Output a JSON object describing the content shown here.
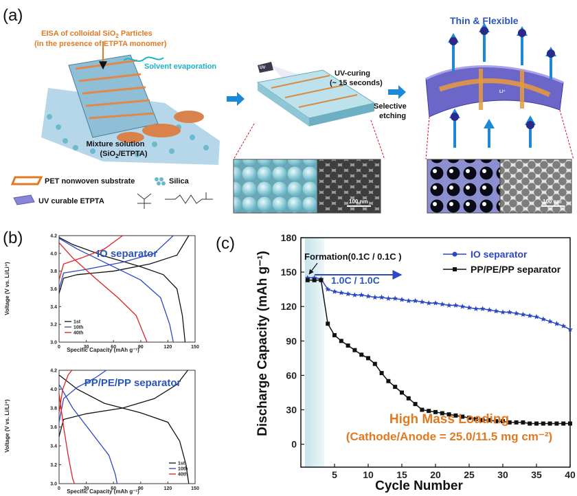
{
  "figure": {
    "panel_labels": [
      "(a)",
      "(b)",
      "(c)"
    ],
    "colors": {
      "blue_text": "#2a55b8",
      "orange_text": "#e07a22",
      "arrow_blue": "#1e88d8",
      "cyan_text": "#18b2c8"
    }
  },
  "panel_a": {
    "title": "Thin & Flexible",
    "eisa_line1": "EISA of colloidal SiO",
    "eisa_sub": "2",
    "eisa_line1b": " Particles",
    "eisa_line2": "(in the presence of ETPTA monomer)",
    "solvent": "Solvent evaporation",
    "uv_curing": "UV-curing",
    "uv_time": "(~ 15 seconds)",
    "uv_lamp": "UV",
    "etch1": "Selective",
    "etch2": "etching",
    "mixture1": "Mixture solution",
    "mixture2": "(SiO",
    "mixture2_sub": "2",
    "mixture2b": "/ETPTA)",
    "legend_pet": "PET nonwoven substrate",
    "legend_silica": "Silica",
    "legend_etpta": "UV curable ETPTA",
    "scale1": "100 nm",
    "scale2": "100 nm",
    "ion_label": "Li⁺"
  },
  "panel_b_top": {
    "title": "IO separator",
    "xlabel": "Specific Capacity (mAh g⁻¹)",
    "ylabel": "Voltage (V vs. Li/Li⁺)",
    "legend": [
      "1st",
      "10th",
      "40th"
    ]
  },
  "panel_b_bottom": {
    "title": "PP/PE/PP separator",
    "xlabel": "Specific Capacity (mAh g⁻¹)",
    "ylabel": "Voltage (V vs. Li/Li⁺)",
    "legend": [
      "1st",
      "10th",
      "40th"
    ]
  },
  "panel_c": {
    "formation": "Formation(0.1C / 0.1C )",
    "rate": "1.0C / 1.0C",
    "hml1": "High Mass Loading",
    "hml2": "(Cathode/Anode = 25.0/11.5 mg cm⁻²)"
  },
  "chart_data": [
    {
      "type": "line",
      "title": "IO separator",
      "xlabel": "Specific Capacity (mAh g⁻¹)",
      "ylabel": "Voltage (V vs. Li/Li⁺)",
      "xlim": [
        0,
        150
      ],
      "ylim": [
        3.0,
        4.2
      ],
      "xticks": [
        0,
        30,
        60,
        90,
        120,
        150
      ],
      "yticks": [
        3.0,
        3.2,
        3.4,
        3.6,
        3.8,
        4.0,
        4.2
      ],
      "legend_position": "bottom-left",
      "series": [
        {
          "name": "1st",
          "color": "#111111",
          "charge": [
            [
              0,
              3.55
            ],
            [
              5,
              3.72
            ],
            [
              20,
              3.76
            ],
            [
              60,
              3.8
            ],
            [
              100,
              3.88
            ],
            [
              130,
              3.98
            ],
            [
              143,
              4.2
            ]
          ],
          "discharge": [
            [
              0,
              4.18
            ],
            [
              15,
              4.1
            ],
            [
              50,
              3.97
            ],
            [
              90,
              3.85
            ],
            [
              115,
              3.76
            ],
            [
              130,
              3.6
            ],
            [
              136,
              3.3
            ],
            [
              139,
              3.0
            ]
          ]
        },
        {
          "name": "10th",
          "color": "#2b47c4",
          "charge": [
            [
              0,
              3.6
            ],
            [
              5,
              3.78
            ],
            [
              30,
              3.82
            ],
            [
              70,
              3.9
            ],
            [
              105,
              4.0
            ],
            [
              126,
              4.2
            ]
          ],
          "discharge": [
            [
              0,
              4.17
            ],
            [
              20,
              4.05
            ],
            [
              50,
              3.9
            ],
            [
              90,
              3.7
            ],
            [
              112,
              3.5
            ],
            [
              122,
              3.2
            ],
            [
              126,
              3.0
            ]
          ]
        },
        {
          "name": "40th",
          "color": "#e02020",
          "charge": [
            [
              0,
              3.7
            ],
            [
              5,
              3.88
            ],
            [
              25,
              3.95
            ],
            [
              50,
              4.05
            ],
            [
              70,
              4.2
            ]
          ],
          "discharge": [
            [
              0,
              4.12
            ],
            [
              15,
              3.95
            ],
            [
              40,
              3.72
            ],
            [
              65,
              3.5
            ],
            [
              85,
              3.3
            ],
            [
              97,
              3.0
            ]
          ]
        }
      ]
    },
    {
      "type": "line",
      "title": "PP/PE/PP separator",
      "xlabel": "Specific Capacity (mAh g⁻¹)",
      "ylabel": "Voltage (V vs. Li/Li⁺)",
      "xlim": [
        0,
        150
      ],
      "ylim": [
        3.0,
        4.2
      ],
      "xticks": [
        0,
        30,
        60,
        90,
        120,
        150
      ],
      "yticks": [
        3.0,
        3.2,
        3.4,
        3.6,
        3.8,
        4.0,
        4.2
      ],
      "legend_position": "bottom-right",
      "series": [
        {
          "name": "1st",
          "color": "#111111",
          "charge": [
            [
              0,
              3.5
            ],
            [
              5,
              3.68
            ],
            [
              30,
              3.74
            ],
            [
              70,
              3.8
            ],
            [
              105,
              3.9
            ],
            [
              130,
              4.05
            ],
            [
              142,
              4.2
            ]
          ],
          "discharge": [
            [
              0,
              4.15
            ],
            [
              20,
              4.0
            ],
            [
              50,
              3.85
            ],
            [
              90,
              3.75
            ],
            [
              120,
              3.65
            ],
            [
              133,
              3.45
            ],
            [
              140,
              3.2
            ],
            [
              143,
              3.0
            ]
          ]
        },
        {
          "name": "10th",
          "color": "#2b47c4",
          "charge": [
            [
              0,
              3.65
            ],
            [
              5,
              3.9
            ],
            [
              20,
              4.02
            ],
            [
              40,
              4.12
            ],
            [
              52,
              4.2
            ]
          ],
          "discharge": [
            [
              0,
              4.05
            ],
            [
              15,
              3.8
            ],
            [
              35,
              3.55
            ],
            [
              55,
              3.3
            ],
            [
              62,
              3.1
            ],
            [
              64,
              3.0
            ]
          ]
        },
        {
          "name": "40th",
          "color": "#e02020",
          "charge": [
            [
              0,
              3.75
            ],
            [
              4,
              4.0
            ],
            [
              10,
              4.15
            ],
            [
              14,
              4.2
            ]
          ],
          "discharge": [
            [
              0,
              3.95
            ],
            [
              5,
              3.6
            ],
            [
              10,
              3.3
            ],
            [
              15,
              3.05
            ],
            [
              17,
              3.0
            ]
          ]
        }
      ]
    },
    {
      "type": "line",
      "xlabel": "Cycle Number",
      "ylabel": "Discharge Capacity (mAh g⁻¹)",
      "xlim": [
        0,
        40
      ],
      "ylim": [
        -20,
        180
      ],
      "xticks": [
        5,
        10,
        15,
        20,
        25,
        30,
        35,
        40
      ],
      "yticks": [
        0,
        30,
        60,
        90,
        120,
        150,
        180
      ],
      "legend_position": "top-right",
      "series": [
        {
          "name": "IO separator",
          "color": "#2b47c4",
          "marker": "star",
          "x": [
            1,
            2,
            3,
            4,
            5,
            6,
            7,
            8,
            9,
            10,
            11,
            12,
            13,
            14,
            15,
            16,
            17,
            18,
            19,
            20,
            21,
            22,
            23,
            24,
            25,
            26,
            27,
            28,
            29,
            30,
            31,
            32,
            33,
            34,
            35,
            36,
            37,
            38,
            39,
            40
          ],
          "y": [
            145,
            145,
            144,
            135,
            133,
            132,
            131,
            130,
            130,
            129,
            128,
            128,
            127,
            127,
            126,
            125,
            125,
            124,
            123,
            123,
            122,
            121,
            121,
            120,
            119,
            118,
            118,
            117,
            116,
            115,
            115,
            114,
            113,
            112,
            111,
            109,
            107,
            105,
            103,
            100
          ]
        },
        {
          "name": "PP/PE/PP separator",
          "color": "#111111",
          "marker": "square",
          "x": [
            1,
            2,
            3,
            4,
            5,
            6,
            7,
            8,
            9,
            10,
            11,
            12,
            13,
            14,
            15,
            16,
            17,
            18,
            19,
            20,
            21,
            22,
            23,
            24,
            25,
            26,
            27,
            28,
            29,
            30,
            31,
            32,
            33,
            34,
            35,
            36,
            37,
            38,
            39,
            40
          ],
          "y": [
            143,
            143,
            143,
            105,
            95,
            90,
            86,
            82,
            78,
            75,
            70,
            62,
            55,
            50,
            45,
            40,
            35,
            30,
            29,
            28,
            27,
            26,
            25,
            24,
            23,
            22,
            21,
            21,
            20,
            20,
            19,
            19,
            19,
            18,
            18,
            18,
            18,
            18,
            18,
            18
          ]
        }
      ]
    }
  ]
}
